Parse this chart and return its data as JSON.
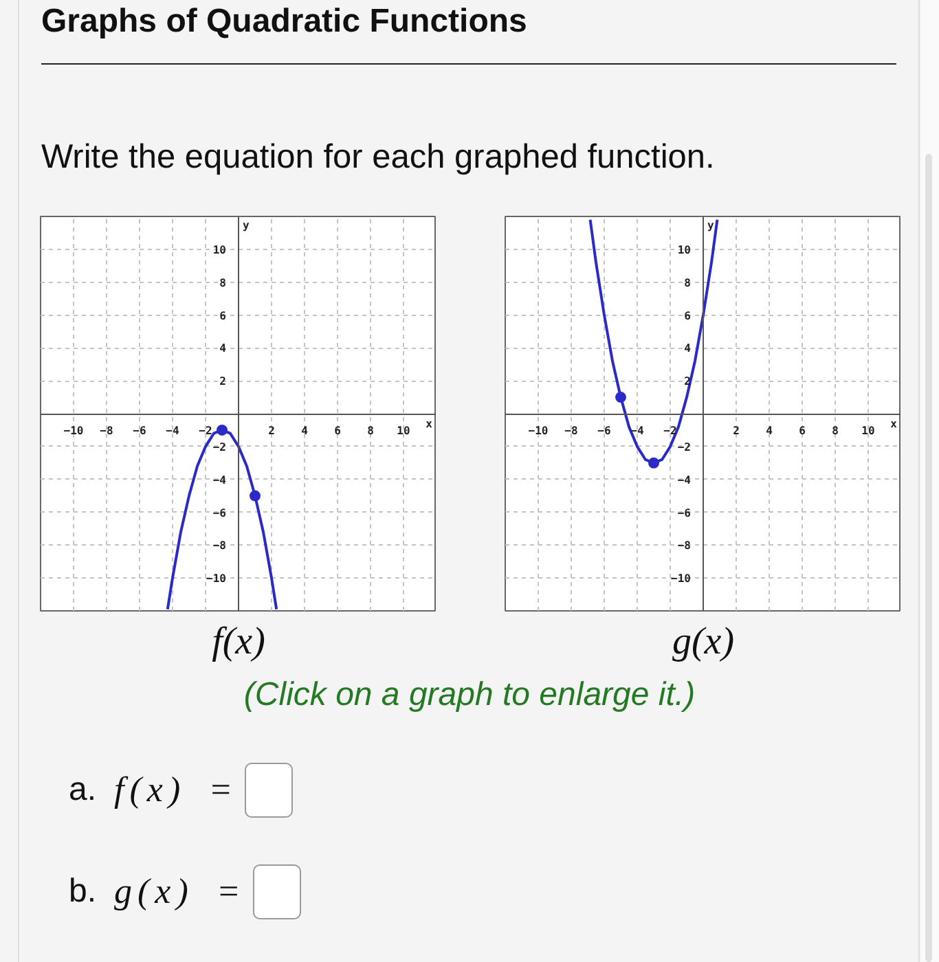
{
  "chart_data": [
    {
      "type": "other",
      "title": "Graphs of Quadratic Functions",
      "subtitle": "Write the equation for each graphed function."
    },
    {
      "type": "line",
      "title": "f(x)",
      "xlabel": "x",
      "ylabel": "y",
      "xlim": [
        -12,
        12
      ],
      "ylim": [
        -12,
        12
      ],
      "xticks": [
        -10,
        -8,
        -6,
        -4,
        -2,
        2,
        4,
        6,
        8,
        10
      ],
      "yticks": [
        -10,
        -8,
        -6,
        -4,
        -2,
        2,
        4,
        6,
        8,
        10
      ],
      "grid": true,
      "series": [
        {
          "type": "line",
          "color": "#2a2ac8",
          "x": [
            -4.3,
            -4,
            -3.5,
            -3,
            -2.5,
            -2,
            -1.5,
            -1,
            -0.5,
            0,
            0.5,
            1,
            1.5,
            2,
            2.3
          ],
          "values": [
            -11.9,
            -10,
            -7.2,
            -5,
            -3.2,
            -2,
            -1.2,
            -1,
            -1.2,
            -2,
            -3.2,
            -5,
            -7.2,
            -10,
            -11.9
          ]
        },
        {
          "type": "scatter",
          "color": "#2a2ac8",
          "marker": "circle",
          "x": [
            -1,
            1
          ],
          "values": [
            -1,
            -5
          ]
        }
      ]
    },
    {
      "type": "line",
      "title": "g(x)",
      "xlabel": "x",
      "ylabel": "y",
      "xlim": [
        -12,
        12
      ],
      "ylim": [
        -12,
        12
      ],
      "xticks": [
        -10,
        -8,
        -6,
        -4,
        -2,
        2,
        4,
        6,
        8,
        10
      ],
      "yticks": [
        -10,
        -8,
        -6,
        -4,
        -2,
        2,
        4,
        6,
        8,
        10
      ],
      "grid": true,
      "series": [
        {
          "type": "line",
          "color": "#2a2ac8",
          "x": [
            -6.85,
            -6.5,
            -6,
            -5.5,
            -5,
            -4.5,
            -4,
            -3.5,
            -3,
            -2.5,
            -2,
            -1.5,
            -1,
            -0.5,
            0,
            0.5,
            0.85
          ],
          "values": [
            11.8,
            9.2,
            6,
            3.2,
            1,
            -0.8,
            -2,
            -2.8,
            -3,
            -2.8,
            -2,
            -0.8,
            1,
            3.2,
            6,
            9.2,
            11.8
          ]
        },
        {
          "type": "scatter",
          "color": "#2a2ac8",
          "marker": "circle",
          "x": [
            -5,
            -3
          ],
          "values": [
            1,
            -3
          ]
        }
      ]
    },
    {
      "type": "other",
      "annotations": [
        "(Click on a graph to enlarge it.)",
        "a. f(x) =",
        "b. g(x) ="
      ]
    }
  ]
}
